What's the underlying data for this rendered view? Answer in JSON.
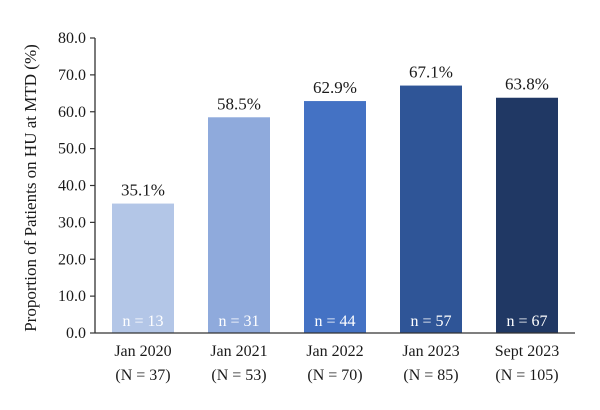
{
  "chart_data": {
    "type": "bar",
    "title": "",
    "xlabel": "",
    "ylabel": "Proportion of Patients on HU at MTD (%)",
    "ylim": [
      0,
      80
    ],
    "yticks": [
      "0.0",
      "10.0",
      "20.0",
      "30.0",
      "40.0",
      "50.0",
      "60.0",
      "70.0",
      "80.0"
    ],
    "grid": false,
    "categories": [
      {
        "line1": "Jan 2020",
        "line2": "(N = 37)"
      },
      {
        "line1": "Jan 2021",
        "line2": "(N = 53)"
      },
      {
        "line1": "Jan 2022",
        "line2": "(N = 70)"
      },
      {
        "line1": "Jan 2023",
        "line2": "(N = 85)"
      },
      {
        "line1": "Sept 2023",
        "line2": "(N = 105)"
      }
    ],
    "values": [
      35.1,
      58.5,
      62.9,
      67.1,
      63.8
    ],
    "value_labels": [
      "35.1%",
      "58.5%",
      "62.9%",
      "67.1%",
      "63.8%"
    ],
    "count_labels": [
      "n = 13",
      "n = 31",
      "n = 44",
      "n = 57",
      "n = 67"
    ],
    "colors": [
      "#b3c6e7",
      "#8faadc",
      "#4472c4",
      "#2f5597",
      "#203864"
    ]
  }
}
